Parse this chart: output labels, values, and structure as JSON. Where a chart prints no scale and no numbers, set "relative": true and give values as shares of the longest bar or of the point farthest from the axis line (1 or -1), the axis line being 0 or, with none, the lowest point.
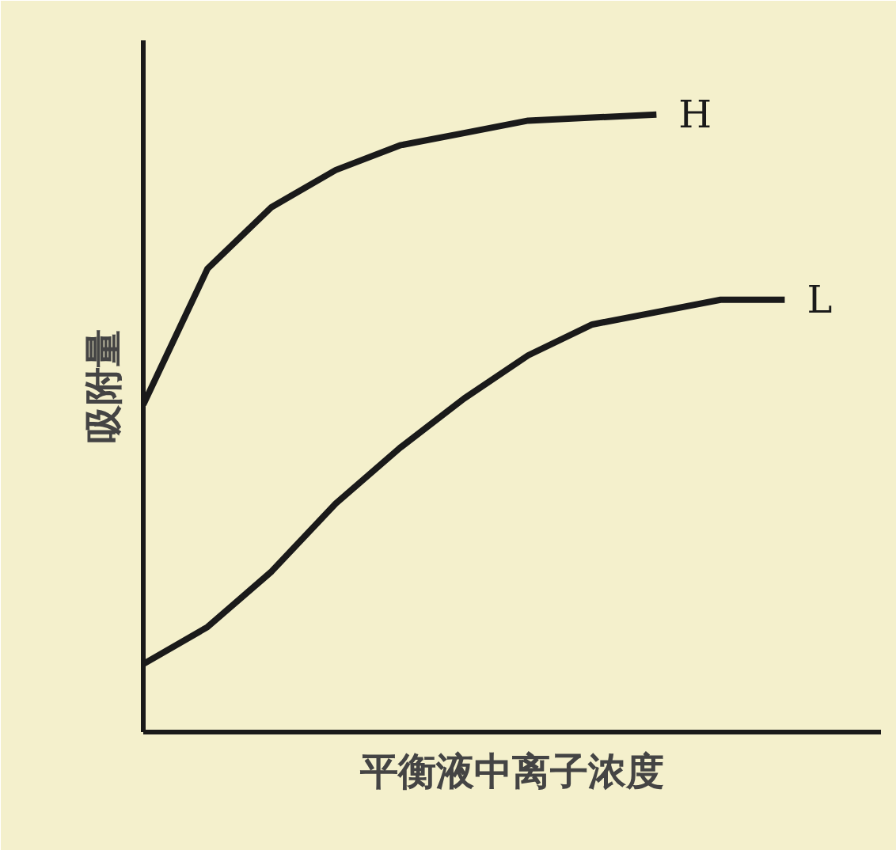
{
  "chart_data": {
    "type": "line",
    "relative": true,
    "xlabel": "平衡液中离子浓度",
    "ylabel": "吸附量",
    "categories": [
      null,
      null,
      null,
      null,
      null,
      null,
      null,
      null,
      null,
      null,
      null
    ],
    "series": [
      {
        "name": "H",
        "color": "#1a1a1a",
        "values": [
          0.53,
          0.75,
          0.85,
          0.91,
          0.95,
          0.97,
          0.99,
          0.995,
          1.0,
          null,
          null
        ]
      },
      {
        "name": "L",
        "color": "#1a1a1a",
        "values": [
          0.11,
          0.17,
          0.26,
          0.37,
          0.46,
          0.54,
          0.61,
          0.66,
          0.68,
          0.7,
          0.7
        ]
      }
    ],
    "grid": false,
    "legend": false,
    "marker": "none",
    "line_style": "solid",
    "tick_labels": false
  }
}
